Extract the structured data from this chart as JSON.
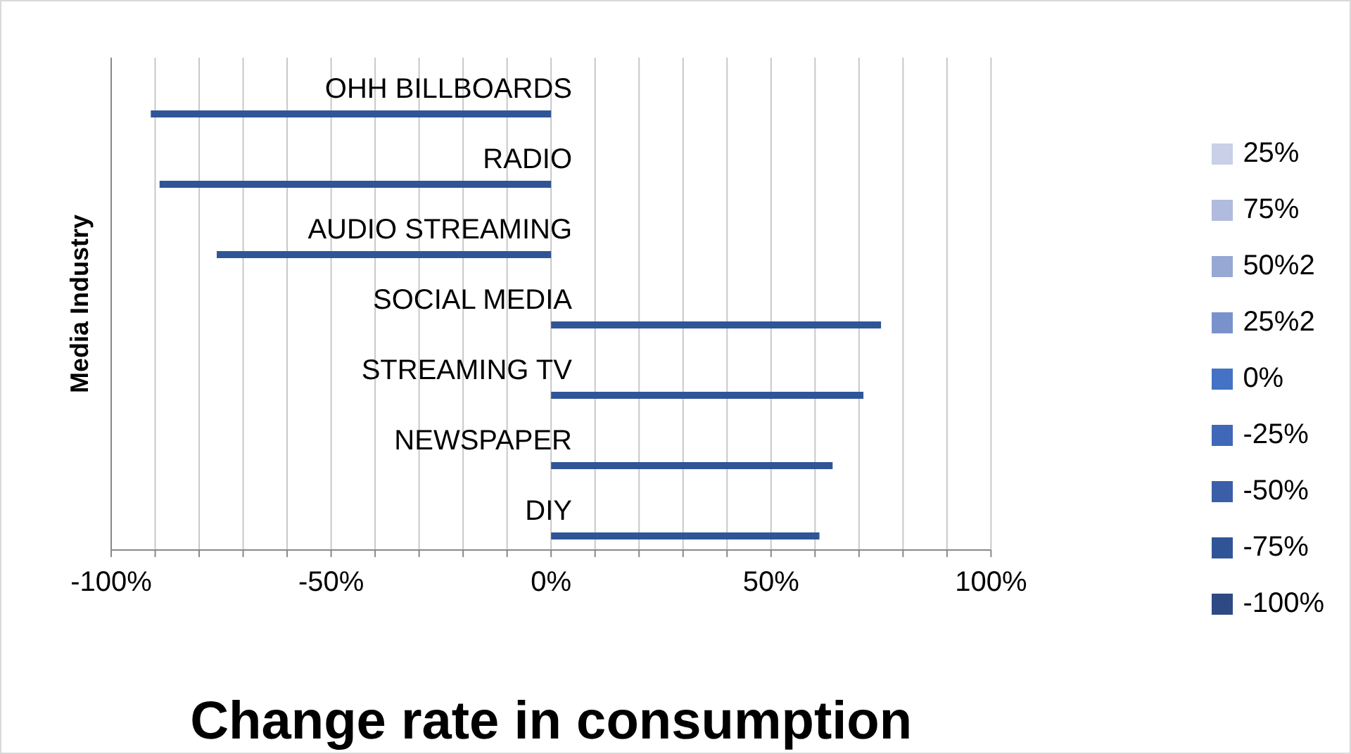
{
  "chart_data": {
    "type": "bar",
    "orientation": "horizontal",
    "xlabel": "Change rate in consumption",
    "ylabel": "Media Industry",
    "categories": [
      "OHH BILLBOARDS",
      "RADIO",
      "AUDIO STREAMING",
      "SOCIAL MEDIA",
      "STREAMING TV",
      "NEWSPAPER",
      "DIY"
    ],
    "series": [
      {
        "name": "25%",
        "color": "#c9d0e8",
        "values": [
          null,
          null,
          null,
          null,
          null,
          null,
          null
        ]
      },
      {
        "name": "75%",
        "color": "#b0bbdd",
        "values": [
          null,
          null,
          null,
          null,
          null,
          null,
          null
        ]
      },
      {
        "name": "50%2",
        "color": "#97a8d4",
        "values": [
          null,
          null,
          null,
          null,
          null,
          null,
          null
        ]
      },
      {
        "name": "25%2",
        "color": "#7a92cc",
        "values": [
          null,
          null,
          null,
          null,
          null,
          null,
          null
        ]
      },
      {
        "name": "0%",
        "color": "#4472c4",
        "values": [
          null,
          null,
          null,
          null,
          null,
          null,
          null
        ]
      },
      {
        "name": "-25%",
        "color": "#3f68b8",
        "values": [
          null,
          null,
          null,
          null,
          null,
          null,
          null
        ]
      },
      {
        "name": "-50%",
        "color": "#3a5fa8",
        "values": [
          null,
          null,
          null,
          null,
          null,
          null,
          null
        ]
      },
      {
        "name": "-75%",
        "color": "#2f5597",
        "values": [
          -91,
          -89,
          -76,
          75,
          71,
          64,
          61
        ]
      },
      {
        "name": "-100%",
        "color": "#2e4a84",
        "values": [
          null,
          null,
          null,
          null,
          null,
          null,
          null
        ]
      }
    ],
    "xlim": [
      -100,
      100
    ],
    "xticks": [
      {
        "value": -100,
        "label": "-100%"
      },
      {
        "value": -90,
        "label": null
      },
      {
        "value": -80,
        "label": null
      },
      {
        "value": -70,
        "label": null
      },
      {
        "value": -60,
        "label": null
      },
      {
        "value": -50,
        "label": "-50%"
      },
      {
        "value": -40,
        "label": null
      },
      {
        "value": -30,
        "label": null
      },
      {
        "value": -20,
        "label": null
      },
      {
        "value": -10,
        "label": null
      },
      {
        "value": 0,
        "label": "0%"
      },
      {
        "value": 10,
        "label": null
      },
      {
        "value": 20,
        "label": null
      },
      {
        "value": 30,
        "label": null
      },
      {
        "value": 40,
        "label": null
      },
      {
        "value": 50,
        "label": "50%"
      },
      {
        "value": 60,
        "label": null
      },
      {
        "value": 70,
        "label": null
      },
      {
        "value": 80,
        "label": null
      },
      {
        "value": 90,
        "label": null
      },
      {
        "value": 100,
        "label": "100%"
      }
    ],
    "grid": "x",
    "legend": "right"
  }
}
